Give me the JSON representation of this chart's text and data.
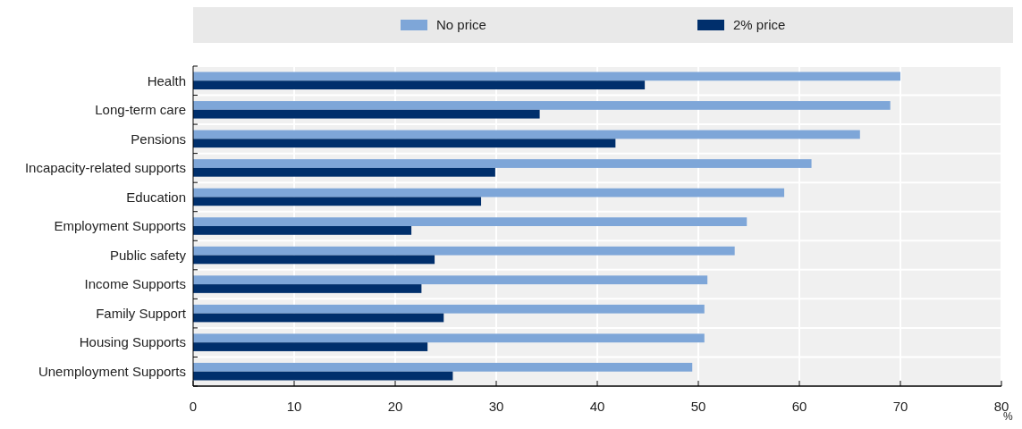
{
  "chart_data": {
    "type": "bar",
    "orientation": "horizontal",
    "xlabel": "%",
    "categories": [
      "Health",
      "Long-term care",
      "Pensions",
      "Incapacity-related supports",
      "Education",
      "Employment Supports",
      "Public safety",
      "Income Supports",
      "Family Support",
      "Housing Supports",
      "Unemployment Supports"
    ],
    "series": [
      {
        "name": "No price",
        "color": "#7ea6d8",
        "values": [
          70.0,
          69.0,
          66.0,
          61.2,
          58.5,
          54.8,
          53.6,
          50.9,
          50.6,
          50.6,
          49.4
        ]
      },
      {
        "name": "2% price",
        "color": "#002f6c",
        "values": [
          44.7,
          34.3,
          41.8,
          29.9,
          28.5,
          21.6,
          23.9,
          22.6,
          24.8,
          23.2,
          25.7
        ]
      }
    ],
    "xlim": [
      0,
      80
    ],
    "xticks": [
      0,
      10,
      20,
      30,
      40,
      50,
      60,
      70,
      80
    ],
    "grid": true,
    "legend": "top"
  }
}
